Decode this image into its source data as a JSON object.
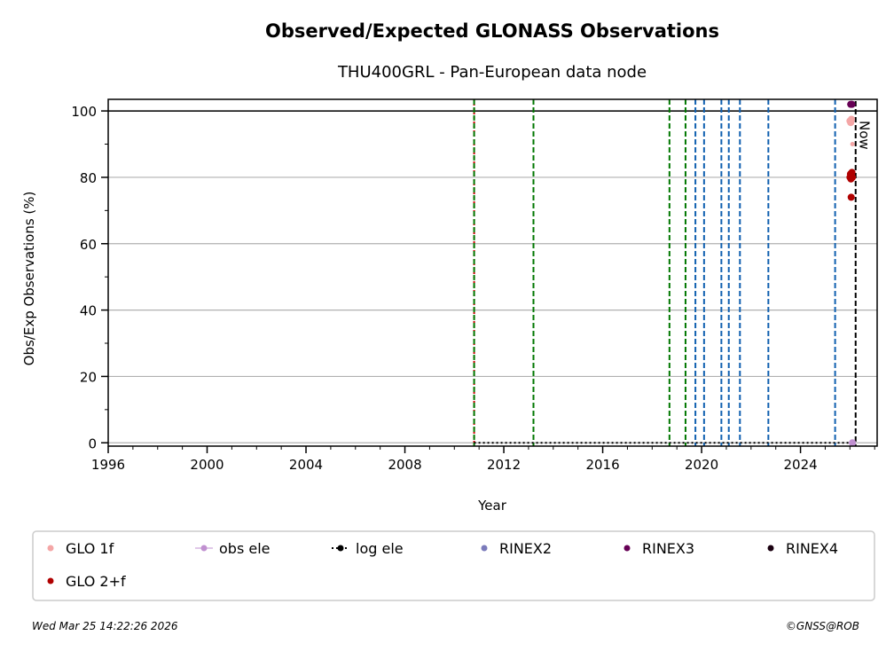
{
  "chart_data": {
    "type": "scatter",
    "title": "Observed/Expected GLONASS Observations",
    "subtitle": "THU400GRL - Pan-European data node",
    "xlabel": "Year",
    "ylabel": "Obs/Exp Observations (%)",
    "xlim": [
      1996,
      2027.1
    ],
    "ylim": [
      -1,
      103.5
    ],
    "x_ticks": [
      1996,
      2000,
      2004,
      2008,
      2012,
      2016,
      2020,
      2024
    ],
    "y_ticks": [
      0,
      20,
      40,
      60,
      80,
      100
    ],
    "grid": "y",
    "reference_line_y": 100,
    "now": {
      "x": 2026.23,
      "label": "Now"
    },
    "vertical_lines": [
      {
        "x": 2010.8,
        "color": "#cc0000",
        "style": "dotted"
      },
      {
        "x": 2010.8,
        "color": "#007700",
        "style": "dashed"
      },
      {
        "x": 2013.2,
        "color": "#007700",
        "style": "dashed"
      },
      {
        "x": 2018.7,
        "color": "#007700",
        "style": "dashed"
      },
      {
        "x": 2019.35,
        "color": "#007700",
        "style": "dashed"
      },
      {
        "x": 2019.75,
        "color": "#1060b0",
        "style": "dashed"
      },
      {
        "x": 2020.1,
        "color": "#1060b0",
        "style": "dashed"
      },
      {
        "x": 2020.8,
        "color": "#1060b0",
        "style": "dashed"
      },
      {
        "x": 2021.1,
        "color": "#1060b0",
        "style": "dashed"
      },
      {
        "x": 2021.55,
        "color": "#1060b0",
        "style": "dashed"
      },
      {
        "x": 2022.7,
        "color": "#1060b0",
        "style": "dashed"
      },
      {
        "x": 2025.4,
        "color": "#1060b0",
        "style": "dashed"
      }
    ],
    "log_ele": {
      "x": [
        2010.8,
        2026.23
      ],
      "y": [
        0,
        0
      ]
    },
    "series": [
      {
        "name": "GLO 1f",
        "color": "#f4a6a6",
        "x": [
          2026.0,
          2026.03,
          2026.06,
          2026.1
        ],
        "y": [
          97,
          96.5,
          97.5,
          90
        ]
      },
      {
        "name": "obs ele",
        "color": "#c090d0",
        "x": [
          2026.1
        ],
        "y": [
          0
        ]
      },
      {
        "name": "log ele",
        "color": "#000000",
        "x": [],
        "y": []
      },
      {
        "name": "RINEX2",
        "color": "#7b7bbb",
        "x": [],
        "y": []
      },
      {
        "name": "RINEX3",
        "color": "#660055",
        "x": [
          2026.03,
          2026.08
        ],
        "y": [
          102,
          102
        ]
      },
      {
        "name": "RINEX4",
        "color": "#1a0010",
        "x": [],
        "y": []
      },
      {
        "name": "GLO 2+f",
        "color": "#b00000",
        "x": [
          2026.0,
          2026.02,
          2026.04,
          2026.06,
          2026.08,
          2026.1,
          2026.05
        ],
        "y": [
          80,
          81,
          79.5,
          80.5,
          81.5,
          80,
          74
        ]
      }
    ],
    "legend": {
      "placement": "bottom",
      "entries": [
        {
          "label": "GLO 1f",
          "color": "#f4a6a6",
          "marker": "dot"
        },
        {
          "label": "obs ele",
          "color": "#c090d0",
          "marker": "line-dot"
        },
        {
          "label": "log ele",
          "color": "#000000",
          "marker": "dotted-dot"
        },
        {
          "label": "RINEX2",
          "color": "#7b7bbb",
          "marker": "dot"
        },
        {
          "label": "RINEX3",
          "color": "#660055",
          "marker": "dot"
        },
        {
          "label": "RINEX4",
          "color": "#1a0010",
          "marker": "dot"
        },
        {
          "label": "GLO 2+f",
          "color": "#b00000",
          "marker": "dot"
        }
      ]
    }
  },
  "footer": {
    "timestamp": "Wed Mar 25 14:22:26 2026",
    "credit": "©GNSS@ROB"
  }
}
